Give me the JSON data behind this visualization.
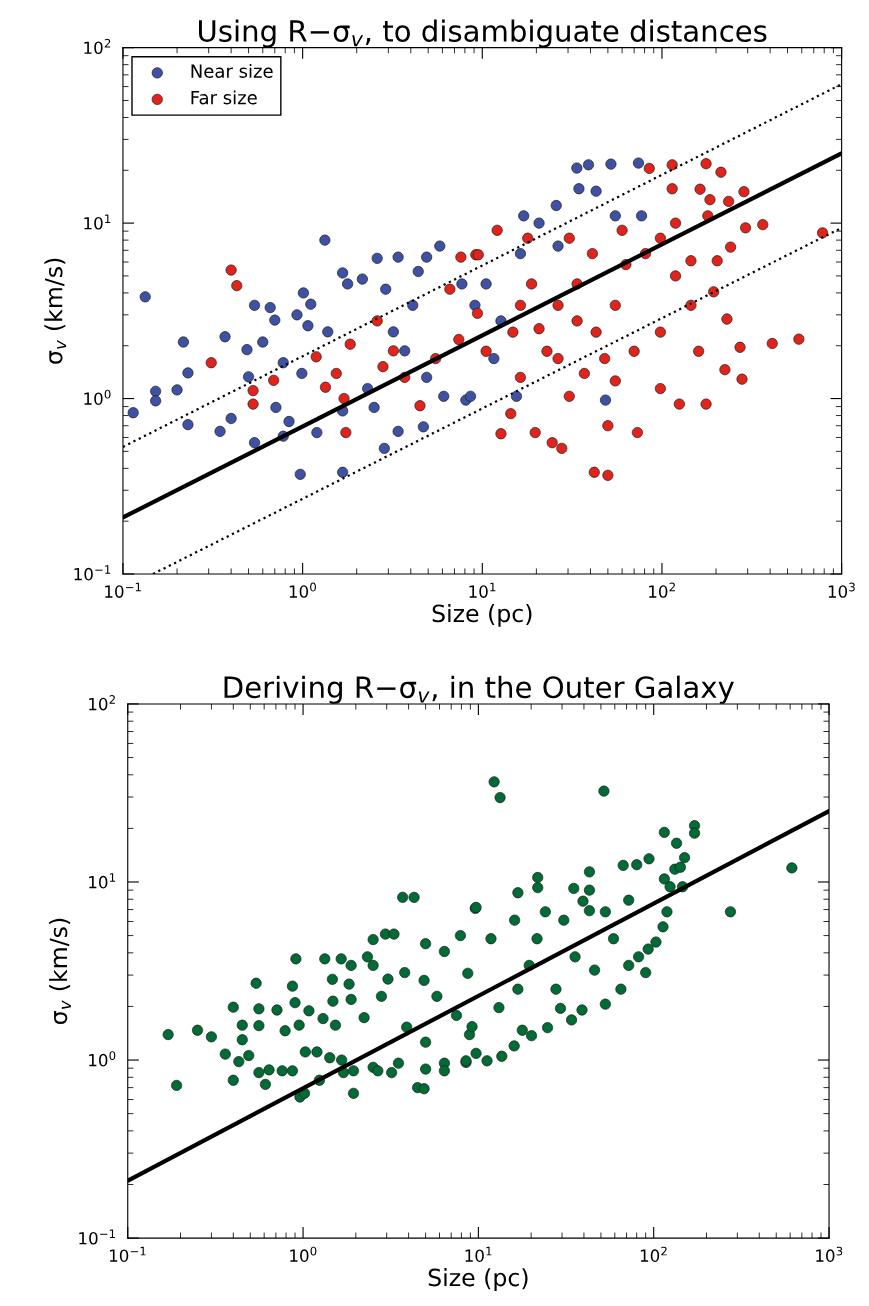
{
  "chart_data": [
    {
      "type": "scatter",
      "title": "Using R−σ$_{v}$, to disambiguate distances",
      "xlabel": "Size (pc)",
      "ylabel": "σ$_{v}$ (km/s)",
      "log": "xy",
      "legend": "top left",
      "marker": "circle",
      "xlim": [
        0.1,
        1000
      ],
      "ylim": [
        0.1,
        100
      ],
      "xticks": [
        {
          "value": 0.1,
          "label": "10$^{−1}$"
        },
        {
          "value": 1,
          "label": "10$^{0}$"
        },
        {
          "value": 10,
          "label": "10$^{1}$"
        },
        {
          "value": 100,
          "label": "10$^{2}$"
        },
        {
          "value": 1000,
          "label": "10$^{3}$"
        }
      ],
      "yticks": [
        {
          "value": 0.1,
          "label": "10$^{−1}$"
        },
        {
          "value": 1,
          "label": "10$^{0}$"
        },
        {
          "value": 10,
          "label": "10$^{1}$"
        },
        {
          "value": 100,
          "label": "10$^{2}$"
        }
      ],
      "series": [
        {
          "name": "Near size",
          "color": "#3f51a3",
          "x": [
            0.114,
            0.133,
            0.152,
            0.152,
            0.2,
            0.217,
            0.23,
            0.23,
            0.347,
            0.37,
            0.4,
            0.49,
            0.5,
            0.54,
            0.54,
            0.6,
            0.66,
            0.7,
            0.71,
            0.78,
            0.78,
            0.84,
            0.93,
            0.97,
            1.01,
            0.99,
            1.07,
            1.11,
            1.33,
            1.38,
            1.2,
            1.67,
            1.67,
            1.78,
            2.15,
            2.6,
            2.85,
            3.4,
            2.9,
            3.7,
            3.4,
            4.7,
            4.9,
            5.8,
            4.4,
            4.9,
            2.3,
            1.67,
            2.5,
            3.2,
            4.1,
            6.1,
            7.7,
            8.1,
            33.6,
            39,
            52,
            74,
            34.5,
            43,
            25.8,
            17,
            20.7,
            55,
            77,
            10.5,
            11.6,
            8.6,
            15.5,
            48.5,
            16.3,
            12.7,
            9.1,
            26.4
          ],
          "values": [
            0.83,
            3.8,
            1.1,
            0.97,
            1.12,
            2.1,
            1.4,
            0.71,
            0.65,
            2.25,
            0.77,
            1.9,
            1.33,
            3.4,
            0.56,
            2.1,
            3.3,
            2.8,
            0.89,
            1.6,
            0.61,
            0.74,
            3.0,
            0.37,
            4.0,
            1.39,
            2.6,
            3.45,
            8.0,
            2.4,
            0.64,
            5.2,
            0.38,
            4.5,
            4.8,
            6.3,
            0.52,
            6.4,
            4.2,
            1.87,
            0.65,
            0.69,
            6.4,
            7.4,
            5.3,
            1.32,
            1.14,
            0.85,
            0.89,
            2.4,
            3.4,
            1.03,
            4.5,
            0.98,
            20.6,
            21.5,
            21.7,
            22,
            15.7,
            15.2,
            12.6,
            11,
            10,
            11,
            11,
            4.5,
            1.69,
            1.03,
            1.03,
            0.98,
            6.7,
            2.77,
            3.4,
            7.4
          ]
        },
        {
          "name": "Far size",
          "color": "#e0231b",
          "x": [
            0.4,
            0.43,
            0.31,
            0.53,
            0.53,
            0.69,
            1.19,
            1.34,
            1.54,
            1.74,
            1.7,
            1.84,
            2.6,
            2.8,
            3.2,
            4.5,
            6.6,
            7.6,
            9.2,
            5.5,
            3.7,
            7.4,
            9.4,
            12.1,
            9.5,
            17.9,
            85,
            114,
            176,
            213,
            163,
            114,
            185,
            286,
            235,
            364,
            292,
            783,
            180,
            241,
            203,
            194,
            145,
            98,
            119,
            81,
            60,
            41,
            33.7,
            26.4,
            20.7,
            14.8,
            10.5,
            43,
            55,
            70,
            98,
            145,
            230,
            160,
            272,
            411,
            578,
            279,
            224,
            176,
            125,
            98,
            73,
            50,
            42,
            50,
            27.7,
            24.5,
            19.7,
            12.7,
            14.4,
            30.5,
            37,
            55,
            26.4,
            16.3,
            18.8,
            30.5,
            63,
            119,
            16.3,
            22.9,
            33.7,
            48
          ],
          "values": [
            5.4,
            4.4,
            1.6,
            0.93,
            1.11,
            1.27,
            1.73,
            1.16,
            1.39,
            0.64,
            1.0,
            2.04,
            2.77,
            1.52,
            1.87,
            0.91,
            4.2,
            6.4,
            6.6,
            1.69,
            1.32,
            2.17,
            3.06,
            9.1,
            6.6,
            8.2,
            20.5,
            21.5,
            21.8,
            19.5,
            15.6,
            15.7,
            13.6,
            15.1,
            13.3,
            9.8,
            9.4,
            8.8,
            11,
            7.3,
            6.1,
            4.06,
            6.1,
            8.2,
            5.0,
            6.7,
            9.1,
            6.7,
            4.5,
            3.4,
            2.5,
            2.39,
            1.86,
            2.39,
            3.4,
            1.86,
            2.39,
            3.4,
            2.84,
            1.86,
            1.96,
            2.06,
            2.18,
            1.29,
            1.46,
            0.93,
            0.93,
            1.14,
            0.64,
            0.7,
            0.38,
            0.365,
            0.52,
            0.56,
            0.64,
            0.63,
            0.82,
            1.03,
            1.39,
            1.26,
            1.69,
            1.32,
            4.5,
            8.2,
            5.8,
            10,
            3.4,
            1.86,
            2.77,
            1.69
          ]
        },
        {
          "type": "line",
          "marker": "none",
          "color": "#000000",
          "line_style": "solid",
          "x": [
            0.1,
            1000
          ],
          "values": [
            0.21,
            25
          ]
        },
        {
          "type": "line",
          "marker": "none",
          "color": "#000000",
          "line_style": "dotted",
          "x": [
            0.1,
            1000
          ],
          "values": [
            0.53,
            62
          ]
        },
        {
          "type": "line",
          "marker": "none",
          "color": "#000000",
          "line_style": "dotted",
          "x": [
            0.147,
            1000
          ],
          "values": [
            0.1,
            9.4
          ]
        }
      ]
    },
    {
      "type": "scatter",
      "title": "Deriving R−σ$_{v}$, in the Outer Galaxy",
      "xlabel": "Size (pc)",
      "ylabel": "σ$_{v}$ (km/s)",
      "log": "xy",
      "marker": "circle",
      "xlim": [
        0.1,
        1000
      ],
      "ylim": [
        0.1,
        100
      ],
      "xticks": [
        {
          "value": 0.1,
          "label": "10$^{−1}$"
        },
        {
          "value": 1,
          "label": "10$^{0}$"
        },
        {
          "value": 10,
          "label": "10$^{1}$"
        },
        {
          "value": 100,
          "label": "10$^{2}$"
        },
        {
          "value": 1000,
          "label": "10$^{3}$"
        }
      ],
      "yticks": [
        {
          "value": 0.1,
          "label": "10$^{−1}$"
        },
        {
          "value": 1,
          "label": "10$^{0}$"
        },
        {
          "value": 10,
          "label": "10$^{1}$"
        },
        {
          "value": 100,
          "label": "10$^{2}$"
        }
      ],
      "series": [
        {
          "color": "#006b35",
          "x": [
            0.17,
            0.19,
            0.25,
            0.3,
            0.36,
            0.4,
            0.4,
            0.43,
            0.45,
            0.45,
            0.49,
            0.54,
            0.56,
            0.56,
            0.56,
            0.61,
            0.64,
            0.71,
            0.76,
            0.79,
            0.87,
            0.87,
            0.91,
            0.9,
            0.95,
            0.96,
            1.02,
            1.03,
            1.08,
            1.2,
            1.24,
            1.3,
            1.33,
            1.42,
            1.47,
            1.48,
            1.53,
            1.65,
            1.66,
            1.7,
            1.83,
            1.88,
            1.88,
            1.94,
            1.94,
            2.23,
            2.33,
            2.51,
            2.51,
            2.51,
            2.67,
            2.95,
            3.3,
            3.05,
            2.8,
            3.2,
            3.7,
            4.3,
            3.8,
            3.5,
            3.9,
            4.5,
            4.9,
            5.0,
            5.0,
            4.9,
            5.0,
            6.4,
            6.4,
            6.4,
            7.9,
            8.5,
            9.6,
            7.5,
            5.8,
            8.7,
            8.9,
            12.3,
            13.3,
            52,
            9.7,
            16.8,
            21.8,
            21.8,
            16.1,
            24.1,
            30.7,
            35,
            39.5,
            43,
            43,
            43,
            67,
            80,
            94,
            115,
            135,
            150,
            171,
            171,
            132,
            142,
            115,
            124,
            146,
            274,
            614,
            119,
            113,
            103,
            93,
            90,
            82,
            72,
            65,
            53,
            59,
            53,
            72,
            34,
            39,
            29.4,
            24.8,
            20.1,
            17.8,
            16,
            13.6,
            11.2,
            8.5,
            9.7,
            11.8,
            21.6,
            35.6,
            27.7,
            16.8,
            13.1,
            9.2,
            19.5,
            46
          ],
          "values": [
            1.39,
            0.72,
            1.47,
            1.35,
            1.08,
            0.77,
            1.98,
            0.98,
            1.57,
            1.3,
            1.06,
            2.7,
            1.94,
            1.56,
            0.85,
            0.73,
            0.88,
            1.91,
            0.87,
            1.46,
            2.6,
            0.87,
            3.7,
            2.1,
            1.57,
            0.62,
            0.65,
            1.11,
            1.89,
            1.11,
            0.77,
            1.71,
            3.7,
            1.03,
            2.84,
            2.14,
            1.57,
            3.7,
            1.0,
            0.85,
            2.67,
            3.4,
            2.19,
            0.65,
            0.87,
            1.73,
            3.8,
            4.75,
            3.4,
            0.91,
            0.87,
            5.1,
            5.1,
            2.85,
            2.28,
            0.85,
            8.2,
            8.2,
            3.1,
            0.96,
            1.53,
            0.7,
            0.69,
            4.5,
            0.89,
            2.8,
            1.26,
            0.96,
            4.07,
            0.87,
            5.0,
            0.97,
            7.1,
            1.78,
            2.28,
            3.07,
            1.39,
            36.5,
            29.8,
            32.4,
            7.2,
            8.7,
            10.6,
            9.3,
            6.1,
            6.8,
            6.1,
            9.2,
            7.8,
            11.4,
            9.0,
            6.9,
            12.4,
            12.5,
            13.5,
            19.0,
            16.5,
            13.7,
            20.7,
            18.8,
            11.8,
            12.1,
            10.4,
            9.4,
            9.4,
            6.8,
            12.0,
            6.8,
            5.6,
            4.6,
            4.2,
            3.1,
            3.8,
            3.4,
            2.5,
            2.06,
            4.8,
            6.8,
            7.9,
            1.68,
            1.91,
            1.95,
            1.52,
            1.37,
            1.47,
            1.2,
            1.05,
            0.99,
            0.99,
            1.09,
            4.8,
            4.8,
            3.8,
            2.5,
            2.5,
            1.97,
            1.54,
            3.4,
            3.2
          ]
        },
        {
          "type": "line",
          "marker": "none",
          "color": "#000000",
          "line_style": "solid",
          "x": [
            0.1,
            1000
          ],
          "values": [
            0.21,
            25
          ]
        }
      ]
    }
  ]
}
